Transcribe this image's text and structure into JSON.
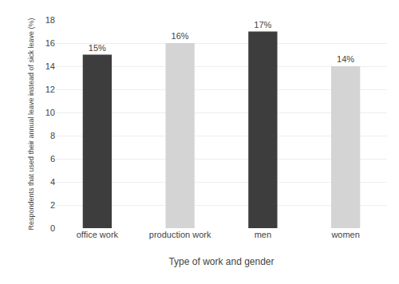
{
  "chart_data": {
    "type": "bar",
    "categories": [
      "office work",
      "production work",
      "men",
      "women"
    ],
    "values": [
      15,
      16,
      17,
      14
    ],
    "value_labels": [
      "15%",
      "16%",
      "17%",
      "14%"
    ],
    "data_labels": true,
    "colors": [
      "#3d3d3d",
      "#d4d4d4",
      "#3d3d3d",
      "#d4d4d4"
    ],
    "xlabel": "Type of work and gender",
    "ylabel": "Respondents that used their annual leave instead of sick leave (%)",
    "ylim": [
      0,
      18
    ],
    "yticks": [
      0,
      2,
      4,
      6,
      8,
      10,
      12,
      14,
      16,
      18
    ],
    "grid": true
  }
}
